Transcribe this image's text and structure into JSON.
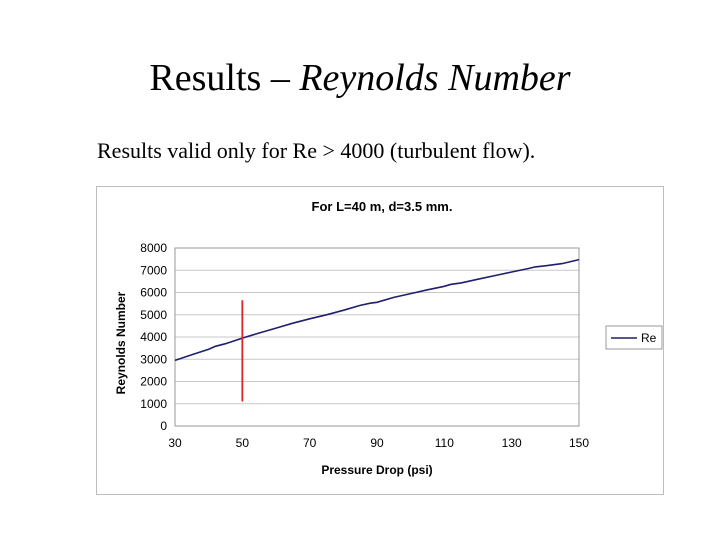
{
  "slide": {
    "title_plain": "Results – ",
    "title_italic": "Reynolds Number",
    "subtitle": "Results valid only for Re > 4000 (turbulent flow)."
  },
  "chart_data": {
    "type": "line",
    "title": "For L=40 m, d=3.5 mm.",
    "xlabel": "Pressure Drop (psi)",
    "ylabel": "Reynolds Number",
    "xlim": [
      30,
      150
    ],
    "ylim": [
      0,
      8000
    ],
    "xticks": [
      30,
      50,
      70,
      90,
      110,
      130,
      150
    ],
    "yticks": [
      0,
      1000,
      2000,
      3000,
      4000,
      5000,
      6000,
      7000,
      8000
    ],
    "grid": "horizontal",
    "legend_position": "right",
    "series": [
      {
        "name": "Re",
        "color": "#1f1f6e",
        "x": [
          30,
          35,
          40,
          42,
          45,
          50,
          55,
          60,
          65,
          70,
          75,
          80,
          85,
          88,
          90,
          95,
          100,
          105,
          110,
          112,
          115,
          120,
          125,
          130,
          135,
          137,
          140,
          145,
          150
        ],
        "y": [
          2950,
          3200,
          3450,
          3580,
          3700,
          3950,
          4180,
          4400,
          4620,
          4820,
          5000,
          5200,
          5420,
          5520,
          5560,
          5780,
          5950,
          6120,
          6280,
          6370,
          6430,
          6600,
          6760,
          6920,
          7080,
          7150,
          7200,
          7300,
          7480
        ]
      }
    ],
    "annotations": [
      {
        "type": "vline",
        "x": 50,
        "y_from": 1100,
        "y_to": 5650,
        "color": "#d9262e"
      }
    ]
  }
}
